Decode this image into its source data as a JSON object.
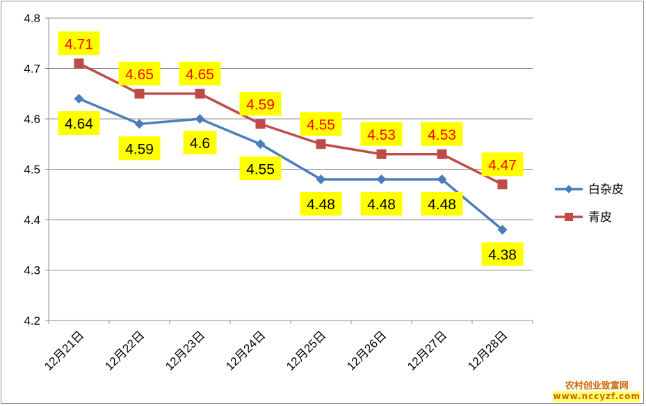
{
  "chart_data": {
    "type": "line",
    "categories": [
      "12月21日",
      "12月22日",
      "12月23日",
      "12月24日",
      "12月25日",
      "12月26日",
      "12月27日",
      "12月28日"
    ],
    "series": [
      {
        "name": "白杂皮",
        "color": "#4a7ebb",
        "marker": "diamond",
        "label_color": "#000000",
        "values": [
          4.64,
          4.59,
          4.6,
          4.55,
          4.48,
          4.48,
          4.48,
          4.38
        ],
        "labels": [
          "4.64",
          "4.59",
          "4.6",
          "4.55",
          "4.48",
          "4.48",
          "4.48",
          "4.38"
        ]
      },
      {
        "name": "青皮",
        "color": "#be4b48",
        "marker": "square",
        "label_color": "#ff0000",
        "values": [
          4.71,
          4.65,
          4.65,
          4.59,
          4.55,
          4.53,
          4.53,
          4.47
        ],
        "labels": [
          "4.71",
          "4.65",
          "4.65",
          "4.59",
          "4.55",
          "4.53",
          "4.53",
          "4.47"
        ]
      }
    ],
    "yticks": [
      "4.2",
      "4.3",
      "4.4",
      "4.5",
      "4.6",
      "4.7",
      "4.8"
    ],
    "ylim": [
      4.2,
      4.8
    ],
    "grid": true,
    "legend": "right",
    "label_background": "#ffff00"
  },
  "watermark": {
    "title": "农村创业致富网",
    "url": "www.nccyzf.com"
  }
}
